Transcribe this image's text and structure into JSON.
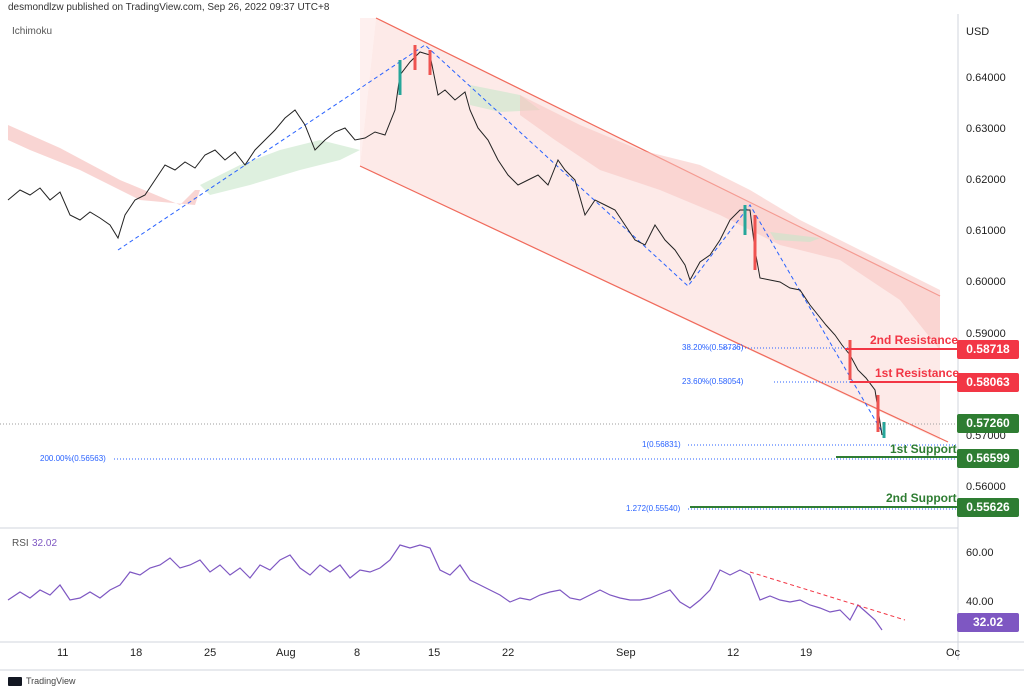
{
  "header": {
    "publisher_text": "desmondlzw published on TradingView.com, Sep 26, 2022 09:37 UTC+8"
  },
  "chart": {
    "indicator_label": "Ichimoku",
    "currency": "USD",
    "y_axis_labels": [
      "0.64000",
      "0.63000",
      "0.62000",
      "0.61000",
      "0.60000",
      "0.59000",
      "0.57000",
      "0.56000"
    ],
    "x_axis_labels": [
      "11",
      "18",
      "25",
      "Aug",
      "8",
      "15",
      "22",
      "Sep",
      "12",
      "19",
      "Oc"
    ],
    "price_badges": [
      {
        "value": "0.58718",
        "color": "#f23645"
      },
      {
        "value": "0.58063",
        "color": "#f23645"
      },
      {
        "value": "0.57260",
        "color": "#2e7d32"
      },
      {
        "value": "0.56599",
        "color": "#2e7d32"
      },
      {
        "value": "0.55626",
        "color": "#2e7d32"
      }
    ],
    "fib_labels": [
      "38.20%(0.58736)",
      "23.60%(0.58054)",
      "1(0.56831)",
      "200.00%(0.56563)",
      "1.272(0.55540)"
    ],
    "levels": {
      "resistance_2": "2nd Resistance",
      "resistance_1": "1st Resistance",
      "support_1": "1st Support",
      "support_2": "2nd Support"
    }
  },
  "rsi": {
    "label": "RSI",
    "value": "32.02",
    "badge": "32.02",
    "axis_labels": [
      "60.00",
      "40.00"
    ]
  },
  "footer": {
    "brand": "TradingView"
  }
}
